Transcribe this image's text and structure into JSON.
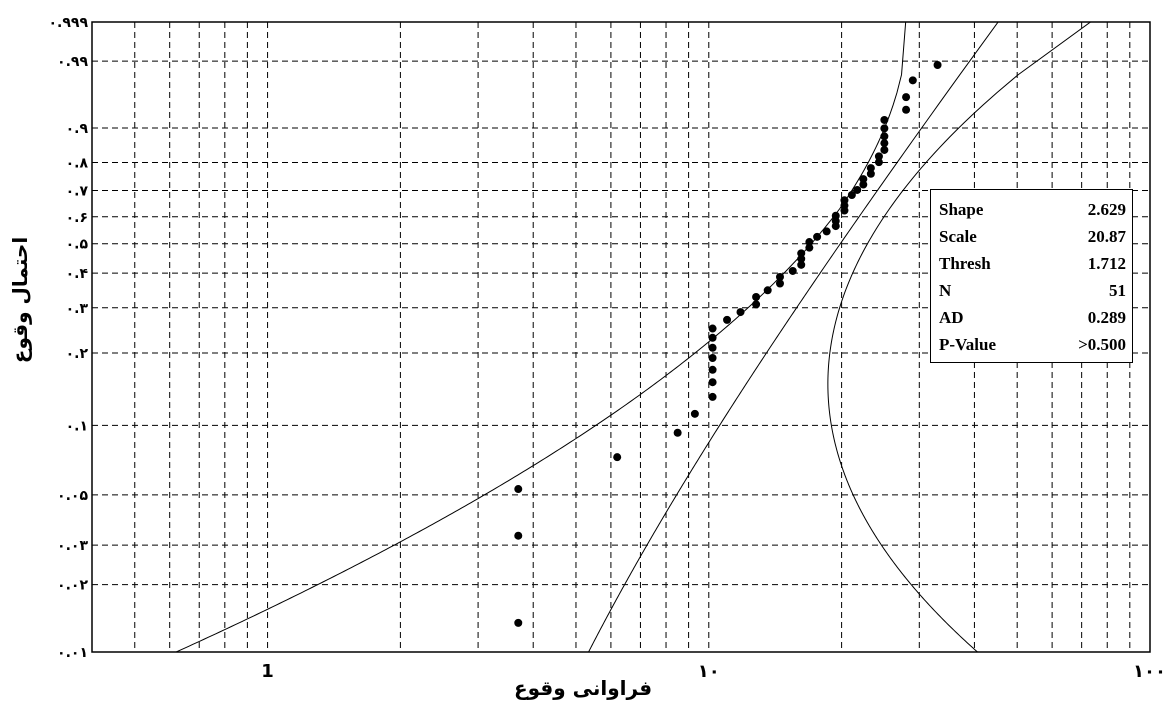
{
  "chart_data": {
    "type": "scatter",
    "title": "",
    "xlabel": "فراوانی وقوع",
    "ylabel": "احتمال وقوع",
    "x_scale": "log",
    "xlim": [
      0.4,
      100
    ],
    "x_ticks": [
      {
        "value": 1,
        "label": "1"
      },
      {
        "value": 10,
        "label": "۱۰"
      },
      {
        "value": 100,
        "label": "۱۰۰"
      }
    ],
    "y_scale": "weibull-probability",
    "ylim": [
      0.01,
      0.999
    ],
    "y_ticks": [
      {
        "value": 0.999,
        "label": "۰.۹۹۹"
      },
      {
        "value": 0.99,
        "label": "۰.۹۹"
      },
      {
        "value": 0.9,
        "label": "۰.۹"
      },
      {
        "value": 0.8,
        "label": "۰.۸"
      },
      {
        "value": 0.7,
        "label": "۰.۷"
      },
      {
        "value": 0.6,
        "label": "۰.۶"
      },
      {
        "value": 0.5,
        "label": "۰.۵"
      },
      {
        "value": 0.4,
        "label": "۰.۴"
      },
      {
        "value": 0.3,
        "label": "۰.۳"
      },
      {
        "value": 0.2,
        "label": "۰.۲"
      },
      {
        "value": 0.1,
        "label": "۰.۱"
      },
      {
        "value": 0.05,
        "label": "۰.۰۵"
      },
      {
        "value": 0.03,
        "label": "۰.۰۳"
      },
      {
        "value": 0.02,
        "label": "۰.۰۲"
      },
      {
        "value": 0.01,
        "label": "۰.۰۱"
      }
    ],
    "grid": true,
    "grid_style": "dashed",
    "points": [
      {
        "x": 3.7,
        "y": 0.0135
      },
      {
        "x": 3.7,
        "y": 0.033
      },
      {
        "x": 3.7,
        "y": 0.053
      },
      {
        "x": 6.2,
        "y": 0.073
      },
      {
        "x": 8.5,
        "y": 0.093
      },
      {
        "x": 9.3,
        "y": 0.112
      },
      {
        "x": 10.2,
        "y": 0.132
      },
      {
        "x": 10.2,
        "y": 0.152
      },
      {
        "x": 10.2,
        "y": 0.171
      },
      {
        "x": 10.2,
        "y": 0.191
      },
      {
        "x": 10.2,
        "y": 0.21
      },
      {
        "x": 10.2,
        "y": 0.23
      },
      {
        "x": 10.2,
        "y": 0.25
      },
      {
        "x": 11.0,
        "y": 0.27
      },
      {
        "x": 11.8,
        "y": 0.289
      },
      {
        "x": 12.8,
        "y": 0.309
      },
      {
        "x": 12.8,
        "y": 0.329
      },
      {
        "x": 13.6,
        "y": 0.348
      },
      {
        "x": 14.5,
        "y": 0.368
      },
      {
        "x": 14.5,
        "y": 0.388
      },
      {
        "x": 15.5,
        "y": 0.407
      },
      {
        "x": 16.2,
        "y": 0.427
      },
      {
        "x": 16.2,
        "y": 0.447
      },
      {
        "x": 16.2,
        "y": 0.466
      },
      {
        "x": 16.9,
        "y": 0.486
      },
      {
        "x": 16.9,
        "y": 0.506
      },
      {
        "x": 17.6,
        "y": 0.525
      },
      {
        "x": 18.5,
        "y": 0.545
      },
      {
        "x": 19.4,
        "y": 0.565
      },
      {
        "x": 19.4,
        "y": 0.584
      },
      {
        "x": 19.4,
        "y": 0.604
      },
      {
        "x": 20.3,
        "y": 0.624
      },
      {
        "x": 20.3,
        "y": 0.643
      },
      {
        "x": 20.3,
        "y": 0.663
      },
      {
        "x": 21.1,
        "y": 0.683
      },
      {
        "x": 21.7,
        "y": 0.702
      },
      {
        "x": 22.4,
        "y": 0.722
      },
      {
        "x": 22.4,
        "y": 0.742
      },
      {
        "x": 23.3,
        "y": 0.761
      },
      {
        "x": 23.3,
        "y": 0.781
      },
      {
        "x": 24.3,
        "y": 0.801
      },
      {
        "x": 24.3,
        "y": 0.82
      },
      {
        "x": 25.0,
        "y": 0.84
      },
      {
        "x": 25.0,
        "y": 0.86
      },
      {
        "x": 25.0,
        "y": 0.879
      },
      {
        "x": 25.0,
        "y": 0.899
      },
      {
        "x": 25.0,
        "y": 0.918
      },
      {
        "x": 28.0,
        "y": 0.938
      },
      {
        "x": 28.0,
        "y": 0.958
      },
      {
        "x": 29.0,
        "y": 0.977
      },
      {
        "x": 33.0,
        "y": 0.988
      }
    ],
    "fit": {
      "distribution": "3-parameter Weibull",
      "shape": 2.629,
      "scale": 20.87,
      "threshold": 1.712,
      "confidence_band": true
    },
    "stats_box": [
      {
        "label": "Shape",
        "value": "2.629"
      },
      {
        "label": "Scale",
        "value": "20.87"
      },
      {
        "label": "Thresh",
        "value": "1.712"
      },
      {
        "label": "N",
        "value": "51"
      },
      {
        "label": "AD",
        "value": "0.289"
      },
      {
        "label": "P-Value",
        "value": ">0.500"
      }
    ]
  }
}
